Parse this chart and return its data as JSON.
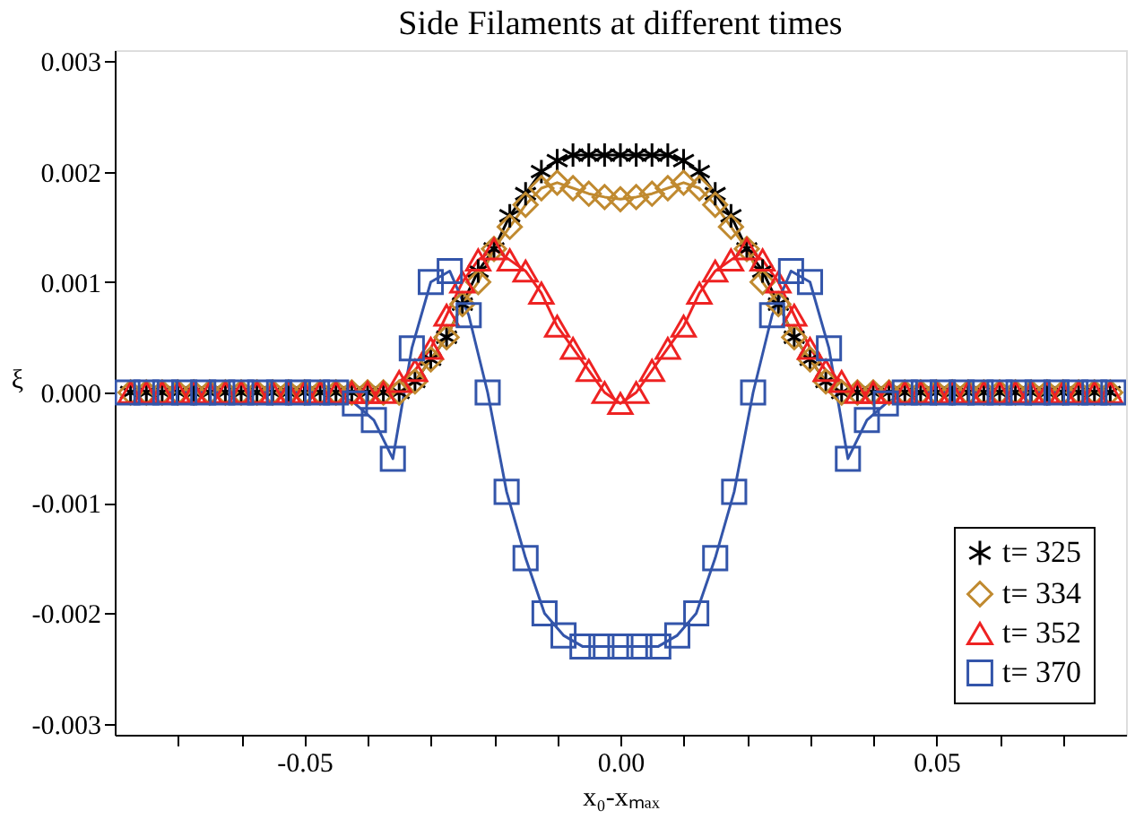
{
  "chart_data": {
    "type": "line",
    "title": "Side Filaments at different times",
    "xlabel": "x₀-xₘₐₓ",
    "ylabel": "ξ",
    "xlim": [
      -0.08,
      0.08
    ],
    "ylim": [
      -0.0031,
      0.0031
    ],
    "xticks": [
      {
        "value": -0.07,
        "label": null
      },
      {
        "value": -0.06,
        "label": null
      },
      -0.05,
      {
        "value": -0.04,
        "label": null
      },
      {
        "value": -0.03,
        "label": null
      },
      {
        "value": -0.02,
        "label": null
      },
      {
        "value": -0.01,
        "label": null
      },
      {
        "value": 0,
        "label": "0.00"
      },
      {
        "value": 0.01,
        "label": null
      },
      {
        "value": 0.02,
        "label": null
      },
      {
        "value": 0.03,
        "label": null
      },
      {
        "value": 0.04,
        "label": null
      },
      0.05,
      {
        "value": 0.06,
        "label": null
      },
      {
        "value": 0.07,
        "label": null
      }
    ],
    "yticks": [
      {
        "value": -0.003,
        "label": "-0.003"
      },
      {
        "value": -0.002,
        "label": "-0.002"
      },
      {
        "value": -0.001,
        "label": "-0.001"
      },
      {
        "value": 0,
        "label": "0.000"
      },
      {
        "value": 0.001,
        "label": "0.001"
      },
      {
        "value": 0.002,
        "label": "0.002"
      },
      {
        "value": 0.003,
        "label": "0.003"
      }
    ],
    "grid": false,
    "legend": "bottom right",
    "line_style": "solid",
    "x": [
      -0.0775,
      -0.075,
      -0.0725,
      -0.07,
      -0.0675,
      -0.065,
      -0.0625,
      -0.06,
      -0.0575,
      -0.055,
      -0.0525,
      -0.05,
      -0.0475,
      -0.045,
      -0.0425,
      -0.04,
      -0.0375,
      -0.035,
      -0.0325,
      -0.03,
      -0.0275,
      -0.025,
      -0.0225,
      -0.02,
      -0.0175,
      -0.015,
      -0.0125,
      -0.01,
      -0.0075,
      -0.005,
      -0.0025,
      0,
      0.0025,
      0.005,
      0.0075,
      0.01,
      0.0125,
      0.015,
      0.0175,
      0.02,
      0.0225,
      0.025,
      0.0275,
      0.03,
      0.0325,
      0.035,
      0.0375,
      0.04,
      0.0425,
      0.045,
      0.0475,
      0.05,
      0.0525,
      0.055,
      0.0575,
      0.06,
      0.0625,
      0.065,
      0.0675,
      0.07,
      0.0725,
      0.075,
      0.0775
    ],
    "series": [
      {
        "name": "t= 325",
        "color": "#000000",
        "marker": "cross",
        "values": [
          0,
          0,
          0,
          0,
          0,
          0,
          0,
          0,
          0,
          0,
          0,
          0,
          0,
          0,
          0,
          0,
          0,
          0,
          0.0001,
          0.0003,
          0.0005,
          0.0008,
          0.0011,
          0.0013,
          0.0016,
          0.0018,
          0.002,
          0.0021,
          0.00215,
          0.00215,
          0.00215,
          0.00215,
          0.00215,
          0.00215,
          0.00215,
          0.0021,
          0.002,
          0.0018,
          0.0016,
          0.0013,
          0.0011,
          0.0008,
          0.0005,
          0.0003,
          0.0001,
          0,
          0,
          0,
          0,
          0,
          0,
          0,
          0,
          0,
          0,
          0,
          0,
          0,
          0,
          0,
          0,
          0,
          0
        ]
      },
      {
        "name": "t= 334",
        "color": "#c08a30",
        "marker": "diamond",
        "values": [
          0,
          0,
          0,
          0,
          0,
          0,
          0,
          0,
          0,
          0,
          0,
          0,
          0,
          0,
          0,
          0,
          0,
          0,
          0.0001,
          0.0003,
          0.0005,
          0.0008,
          0.001,
          0.0013,
          0.0015,
          0.0017,
          0.00185,
          0.0019,
          0.00185,
          0.0018,
          0.00177,
          0.00175,
          0.00177,
          0.0018,
          0.00185,
          0.0019,
          0.00185,
          0.0017,
          0.0015,
          0.0013,
          0.001,
          0.0008,
          0.0005,
          0.0003,
          0.0001,
          0,
          0,
          0,
          0,
          0,
          0,
          0,
          0,
          0,
          0,
          0,
          0,
          0,
          0,
          0,
          0,
          0,
          0
        ]
      },
      {
        "name": "t= 352",
        "color": "#ee2222",
        "marker": "triangle",
        "values": [
          0,
          0,
          0,
          0,
          0,
          0,
          0,
          0,
          0,
          0,
          0,
          0,
          0,
          0,
          0,
          0,
          0,
          0.0001,
          0.0002,
          0.0004,
          0.0007,
          0.001,
          0.0012,
          0.0013,
          0.0012,
          0.0011,
          0.0009,
          0.0006,
          0.0004,
          0.0002,
          0,
          -0.0001,
          0,
          0.0002,
          0.0004,
          0.0006,
          0.0009,
          0.0011,
          0.0012,
          0.0013,
          0.0012,
          0.001,
          0.0007,
          0.0004,
          0.0002,
          0.0001,
          0,
          0,
          0,
          0,
          0,
          0,
          0,
          0,
          0,
          0,
          0,
          0,
          0,
          0,
          0,
          0,
          0
        ]
      },
      {
        "name": "t= 370",
        "color": "#3355aa",
        "marker": "square",
        "x": [
          -0.078,
          -0.075,
          -0.072,
          -0.069,
          -0.066,
          -0.063,
          -0.06,
          -0.057,
          -0.054,
          -0.051,
          -0.048,
          -0.045,
          -0.042,
          -0.039,
          -0.036,
          -0.033,
          -0.03,
          -0.027,
          -0.024,
          -0.021,
          -0.018,
          -0.015,
          -0.012,
          -0.009,
          -0.006,
          -0.003,
          0,
          0.003,
          0.006,
          0.009,
          0.012,
          0.015,
          0.018,
          0.021,
          0.024,
          0.027,
          0.03,
          0.033,
          0.036,
          0.039,
          0.042,
          0.045,
          0.048,
          0.051,
          0.054,
          0.057,
          0.06,
          0.063,
          0.066,
          0.069,
          0.072,
          0.075,
          0.078
        ],
        "values": [
          0,
          0,
          0,
          0,
          0,
          0,
          0,
          0,
          0,
          0,
          0,
          0,
          -0.0001,
          -0.00025,
          -0.0006,
          0.0004,
          0.001,
          0.0011,
          0.0007,
          0,
          -0.0009,
          -0.0015,
          -0.002,
          -0.0022,
          -0.0023,
          -0.0023,
          -0.0023,
          -0.0023,
          -0.0023,
          -0.0022,
          -0.002,
          -0.0015,
          -0.0009,
          0,
          0.0007,
          0.0011,
          0.001,
          0.0004,
          -0.0006,
          -0.00025,
          -0.0001,
          0,
          0,
          0,
          0,
          0,
          0,
          0,
          0,
          0,
          0,
          0,
          0
        ]
      }
    ]
  }
}
